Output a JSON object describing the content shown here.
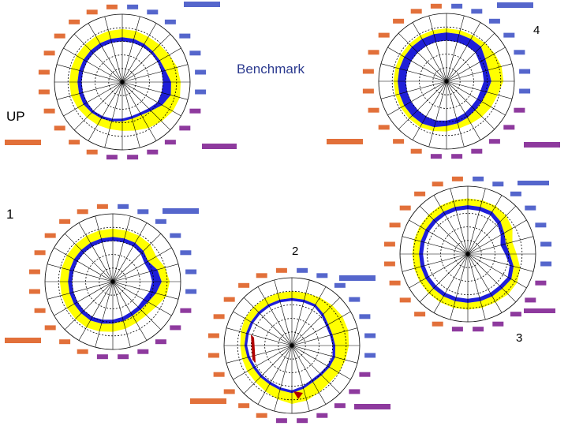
{
  "labels": {
    "benchmark": "Benchmark",
    "up": "UP",
    "one": "1",
    "two": "2",
    "three": "3",
    "four": "4"
  },
  "colors": {
    "yellow": "#ffff00",
    "blue": "#1f1fd8",
    "red": "#b00000",
    "spoke": "#000000",
    "cat_orange": "#e2703a",
    "cat_purple": "#8e3a9e",
    "cat_blue": "#5566cc"
  },
  "chart_data": [
    {
      "type": "radar",
      "id": "up",
      "r_yellow_out": [
        0.78,
        0.78,
        0.77,
        0.78,
        0.8,
        0.84,
        0.86,
        0.88,
        0.86,
        0.82,
        0.78,
        0.74,
        0.72,
        0.72,
        0.73,
        0.74,
        0.76,
        0.78,
        0.78,
        0.78,
        0.78,
        0.78,
        0.78,
        0.78
      ],
      "r_blue_out": [
        0.66,
        0.66,
        0.65,
        0.64,
        0.64,
        0.66,
        0.72,
        0.74,
        0.68,
        0.6,
        0.56,
        0.56,
        0.58,
        0.6,
        0.62,
        0.64,
        0.66,
        0.66,
        0.66,
        0.66,
        0.66,
        0.66,
        0.66,
        0.66
      ],
      "r_blue_in": [
        0.6,
        0.6,
        0.6,
        0.6,
        0.6,
        0.6,
        0.6,
        0.6,
        0.6,
        0.55,
        0.52,
        0.52,
        0.54,
        0.56,
        0.58,
        0.6,
        0.6,
        0.6,
        0.6,
        0.6,
        0.6,
        0.6,
        0.6,
        0.6
      ]
    },
    {
      "type": "radar",
      "id": "four",
      "r_yellow_out": [
        0.78,
        0.78,
        0.78,
        0.8,
        0.82,
        0.84,
        0.84,
        0.78,
        0.76,
        0.74,
        0.72,
        0.72,
        0.74,
        0.76,
        0.78,
        0.78,
        0.78,
        0.78,
        0.78,
        0.78,
        0.78,
        0.78,
        0.78,
        0.78
      ],
      "r_blue_out": [
        0.72,
        0.72,
        0.72,
        0.72,
        0.66,
        0.64,
        0.66,
        0.62,
        0.6,
        0.6,
        0.62,
        0.64,
        0.66,
        0.7,
        0.72,
        0.72,
        0.72,
        0.72,
        0.72,
        0.72,
        0.72,
        0.72,
        0.72,
        0.72
      ],
      "r_blue_in": [
        0.6,
        0.6,
        0.6,
        0.6,
        0.56,
        0.55,
        0.55,
        0.52,
        0.52,
        0.52,
        0.54,
        0.56,
        0.58,
        0.6,
        0.6,
        0.6,
        0.6,
        0.6,
        0.6,
        0.6,
        0.6,
        0.6,
        0.6,
        0.6
      ]
    },
    {
      "type": "radar",
      "id": "one",
      "r_yellow_out": [
        0.78,
        0.78,
        0.78,
        0.78,
        0.74,
        0.8,
        0.84,
        0.82,
        0.74,
        0.7,
        0.7,
        0.72,
        0.74,
        0.76,
        0.78,
        0.78,
        0.78,
        0.78,
        0.78,
        0.78,
        0.78,
        0.78,
        0.78,
        0.78
      ],
      "r_blue_out": [
        0.66,
        0.66,
        0.66,
        0.64,
        0.6,
        0.68,
        0.72,
        0.66,
        0.6,
        0.58,
        0.58,
        0.6,
        0.62,
        0.64,
        0.66,
        0.66,
        0.66,
        0.66,
        0.66,
        0.66,
        0.66,
        0.66,
        0.66,
        0.66
      ],
      "r_blue_in": [
        0.6,
        0.6,
        0.6,
        0.58,
        0.54,
        0.56,
        0.58,
        0.56,
        0.52,
        0.52,
        0.52,
        0.54,
        0.56,
        0.58,
        0.6,
        0.6,
        0.6,
        0.6,
        0.6,
        0.6,
        0.6,
        0.6,
        0.6,
        0.6
      ]
    },
    {
      "type": "radar",
      "id": "two",
      "r_yellow_out": [
        0.8,
        0.8,
        0.82,
        0.84,
        0.86,
        0.86,
        0.84,
        0.82,
        0.8,
        0.78,
        0.8,
        0.84,
        0.86,
        0.82,
        0.78,
        0.76,
        0.76,
        0.76,
        0.76,
        0.78,
        0.8,
        0.8,
        0.8,
        0.8
      ],
      "r_blue_out": [
        0.7,
        0.7,
        0.7,
        0.66,
        0.62,
        0.62,
        0.64,
        0.66,
        0.64,
        0.62,
        0.62,
        0.66,
        0.7,
        0.68,
        0.66,
        0.66,
        0.66,
        0.68,
        0.7,
        0.7,
        0.7,
        0.7,
        0.7,
        0.7
      ],
      "r_blue_in": [
        0.66,
        0.66,
        0.66,
        0.62,
        0.58,
        0.58,
        0.6,
        0.62,
        0.6,
        0.58,
        0.58,
        0.62,
        0.66,
        0.64,
        0.62,
        0.62,
        0.62,
        0.64,
        0.66,
        0.66,
        0.66,
        0.66,
        0.66,
        0.66
      ]
    },
    {
      "type": "radar",
      "id": "three",
      "r_yellow_out": [
        0.82,
        0.82,
        0.82,
        0.8,
        0.76,
        0.68,
        0.72,
        0.8,
        0.84,
        0.84,
        0.82,
        0.82,
        0.82,
        0.82,
        0.82,
        0.82,
        0.82,
        0.82,
        0.82,
        0.82,
        0.82,
        0.82,
        0.82,
        0.82
      ],
      "r_blue_out": [
        0.72,
        0.72,
        0.72,
        0.68,
        0.62,
        0.58,
        0.62,
        0.7,
        0.74,
        0.72,
        0.72,
        0.72,
        0.72,
        0.72,
        0.72,
        0.72,
        0.72,
        0.72,
        0.72,
        0.72,
        0.72,
        0.72,
        0.72,
        0.72
      ],
      "r_blue_in": [
        0.66,
        0.66,
        0.66,
        0.62,
        0.56,
        0.5,
        0.55,
        0.64,
        0.68,
        0.66,
        0.66,
        0.66,
        0.66,
        0.66,
        0.66,
        0.66,
        0.66,
        0.66,
        0.66,
        0.66,
        0.66,
        0.66,
        0.66,
        0.66
      ]
    }
  ]
}
